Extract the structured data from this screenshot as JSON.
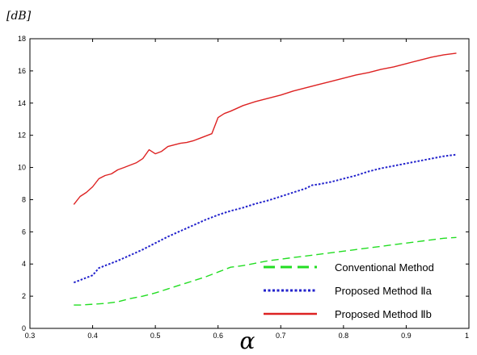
{
  "chart_data": {
    "type": "line",
    "title": "",
    "xlabel": "α",
    "ylabel": "[dB]",
    "xlim": [
      0.3,
      1.0
    ],
    "ylim": [
      0,
      18
    ],
    "xticks": [
      "0.3",
      "0.4",
      "0.5",
      "0.6",
      "0.7",
      "0.8",
      "0.9",
      "1"
    ],
    "yticks": [
      "0",
      "2",
      "4",
      "6",
      "8",
      "10",
      "12",
      "14",
      "16",
      "18"
    ],
    "grid": false,
    "legend_position": "bottom-right",
    "series": [
      {
        "name": "Conventional Method",
        "color": "#22dd22",
        "style": "dashed",
        "x": [
          0.37,
          0.38,
          0.4,
          0.42,
          0.44,
          0.46,
          0.48,
          0.5,
          0.52,
          0.54,
          0.56,
          0.58,
          0.6,
          0.62,
          0.64,
          0.66,
          0.68,
          0.7,
          0.72,
          0.74,
          0.76,
          0.78,
          0.8,
          0.82,
          0.84,
          0.86,
          0.88,
          0.9,
          0.92,
          0.94,
          0.96,
          0.98
        ],
        "values": [
          1.45,
          1.45,
          1.5,
          1.55,
          1.65,
          1.85,
          2.0,
          2.2,
          2.45,
          2.7,
          2.95,
          3.2,
          3.5,
          3.8,
          3.9,
          4.05,
          4.2,
          4.3,
          4.4,
          4.5,
          4.6,
          4.7,
          4.8,
          4.9,
          5.0,
          5.1,
          5.2,
          5.3,
          5.4,
          5.5,
          5.6,
          5.65
        ]
      },
      {
        "name": "Proposed Method Ⅱa",
        "color": "#2222cc",
        "style": "dotted",
        "x": [
          0.37,
          0.38,
          0.4,
          0.41,
          0.42,
          0.44,
          0.46,
          0.48,
          0.5,
          0.52,
          0.54,
          0.56,
          0.58,
          0.6,
          0.62,
          0.64,
          0.66,
          0.68,
          0.7,
          0.72,
          0.74,
          0.75,
          0.76,
          0.78,
          0.8,
          0.82,
          0.84,
          0.86,
          0.88,
          0.9,
          0.92,
          0.94,
          0.96,
          0.98
        ],
        "values": [
          2.85,
          3.0,
          3.3,
          3.75,
          3.9,
          4.2,
          4.55,
          4.9,
          5.3,
          5.7,
          6.05,
          6.4,
          6.75,
          7.05,
          7.3,
          7.5,
          7.75,
          7.95,
          8.2,
          8.45,
          8.7,
          8.9,
          8.95,
          9.1,
          9.3,
          9.5,
          9.75,
          9.95,
          10.1,
          10.25,
          10.4,
          10.55,
          10.7,
          10.8
        ]
      },
      {
        "name": "Proposed Method Ⅱb",
        "color": "#dd2222",
        "style": "solid",
        "x": [
          0.37,
          0.38,
          0.39,
          0.4,
          0.41,
          0.42,
          0.43,
          0.44,
          0.45,
          0.46,
          0.47,
          0.48,
          0.49,
          0.5,
          0.51,
          0.52,
          0.53,
          0.54,
          0.55,
          0.56,
          0.57,
          0.58,
          0.59,
          0.6,
          0.61,
          0.62,
          0.64,
          0.66,
          0.68,
          0.7,
          0.72,
          0.74,
          0.76,
          0.78,
          0.8,
          0.82,
          0.84,
          0.86,
          0.88,
          0.9,
          0.92,
          0.94,
          0.96,
          0.98
        ],
        "values": [
          7.7,
          8.2,
          8.45,
          8.8,
          9.3,
          9.5,
          9.6,
          9.85,
          10.0,
          10.15,
          10.3,
          10.55,
          11.1,
          10.85,
          11.0,
          11.3,
          11.4,
          11.5,
          11.55,
          11.65,
          11.8,
          11.95,
          12.1,
          13.1,
          13.35,
          13.5,
          13.85,
          14.1,
          14.3,
          14.5,
          14.75,
          14.95,
          15.15,
          15.35,
          15.55,
          15.75,
          15.9,
          16.1,
          16.25,
          16.45,
          16.65,
          16.85,
          17.0,
          17.1
        ]
      }
    ]
  }
}
